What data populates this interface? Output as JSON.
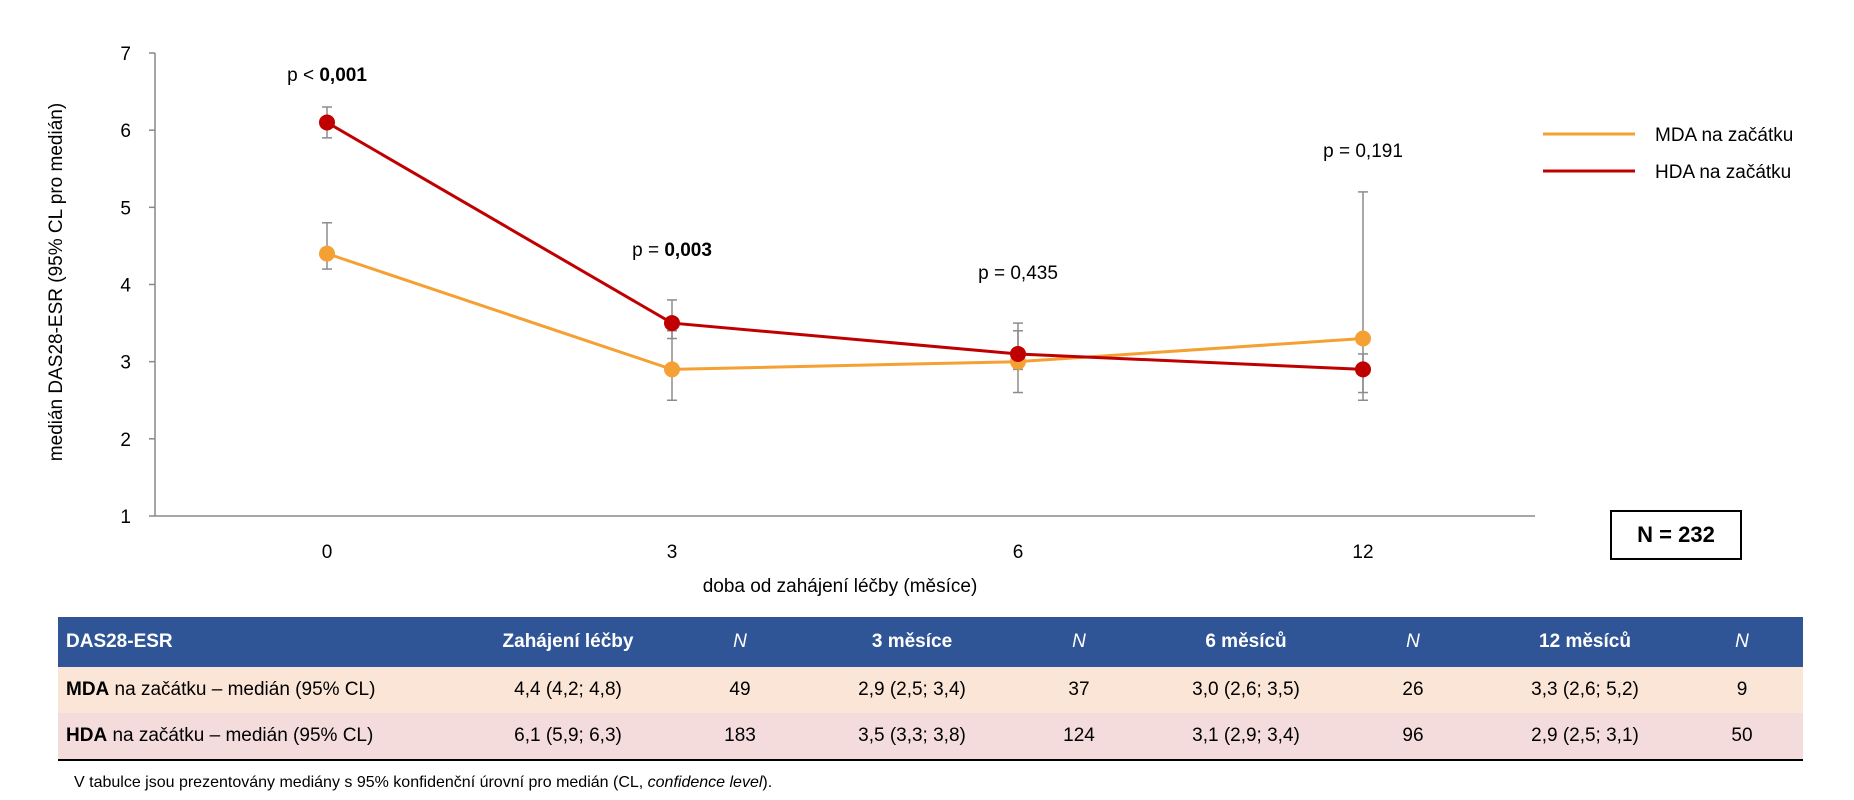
{
  "chart_data": {
    "type": "line",
    "categories": [
      "0",
      "3",
      "6",
      "12"
    ],
    "xlabel": "doba od zahájení léčby (měsíce)",
    "ylabel": "medián DAS28-ESR (95% CL pro medián)",
    "ylim": [
      1,
      7
    ],
    "yticks": [
      1,
      2,
      3,
      4,
      5,
      6,
      7
    ],
    "legend": "right",
    "series": [
      {
        "name": "MDA na začátku",
        "color": "#f5a033",
        "values": [
          4.4,
          2.9,
          3.0,
          3.3
        ],
        "ci_low": [
          4.2,
          2.5,
          2.6,
          2.6
        ],
        "ci_high": [
          4.8,
          3.4,
          3.5,
          5.2
        ]
      },
      {
        "name": "HDA na začátku",
        "color": "#c00000",
        "values": [
          6.1,
          3.5,
          3.1,
          2.9
        ],
        "ci_low": [
          5.9,
          3.3,
          2.9,
          2.5
        ],
        "ci_high": [
          6.3,
          3.8,
          3.4,
          3.1
        ]
      }
    ],
    "annotations": [
      {
        "prefix": "p < ",
        "value": "0,001",
        "bold": true
      },
      {
        "prefix": "p = ",
        "value": "0,003",
        "bold": true
      },
      {
        "prefix": "p = ",
        "value": "0,435",
        "bold": false
      },
      {
        "prefix": "p = ",
        "value": "0,191",
        "bold": false
      }
    ]
  },
  "n_box": "N = 232",
  "table": {
    "headers": [
      "DAS28-ESR",
      "Zahájení léčby",
      "N",
      "3 měsíce",
      "N",
      "6 měsíců",
      "N",
      "12 měsíců",
      "N"
    ],
    "rows": [
      {
        "bold": "MDA",
        "label": " na začátku – medián (95% CL)",
        "cells": [
          "4,4 (4,2; 4,8)",
          "49",
          "2,9 (2,5; 3,4)",
          "37",
          "3,0 (2,6; 3,5)",
          "26",
          "3,3 (2,6; 5,2)",
          "9"
        ]
      },
      {
        "bold": "HDA",
        "label": " na začátku – medián (95% CL)",
        "cells": [
          "6,1 (5,9; 6,3)",
          "183",
          "3,5 (3,3; 3,8)",
          "124",
          "3,1 (2,9; 3,4)",
          "96",
          "2,9 (2,5; 3,1)",
          "50"
        ]
      }
    ]
  },
  "footnote": {
    "text": "V tabulce jsou prezentovány mediány s 95% konfidenční úrovní pro medián (CL, ",
    "italic": "confidence level",
    "end": ")."
  }
}
